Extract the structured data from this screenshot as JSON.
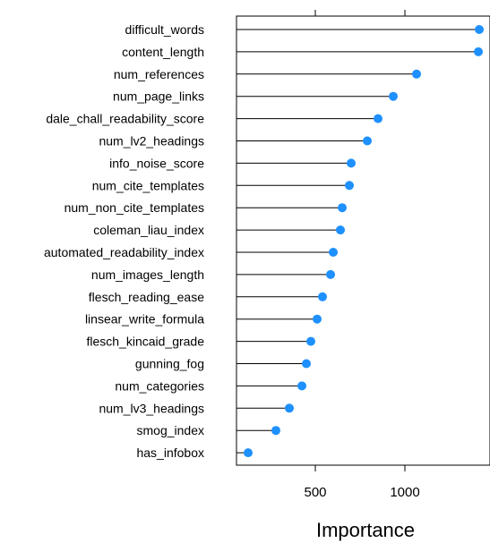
{
  "chart_data": {
    "type": "lollipop",
    "xlabel": "Importance",
    "ylabel": "",
    "title": "",
    "xticks": [
      500,
      1000
    ],
    "xlim": [
      60,
      1460
    ],
    "grid": false,
    "point_color": "#1e90ff",
    "categories": [
      "difficult_words",
      "content_length",
      "num_references",
      "num_page_links",
      "dale_chall_readability_score",
      "num_lv2_headings",
      "info_noise_score",
      "num_cite_templates",
      "num_non_cite_templates",
      "coleman_liau_index",
      "automated_readability_index",
      "num_images_length",
      "flesch_reading_ease",
      "linsear_write_formula",
      "flesch_kincaid_grade",
      "gunning_fog",
      "num_categories",
      "num_lv3_headings",
      "smog_index",
      "has_infobox"
    ],
    "values": [
      1415,
      1410,
      1065,
      935,
      850,
      790,
      700,
      690,
      650,
      640,
      600,
      585,
      540,
      510,
      475,
      450,
      425,
      355,
      280,
      125
    ]
  }
}
